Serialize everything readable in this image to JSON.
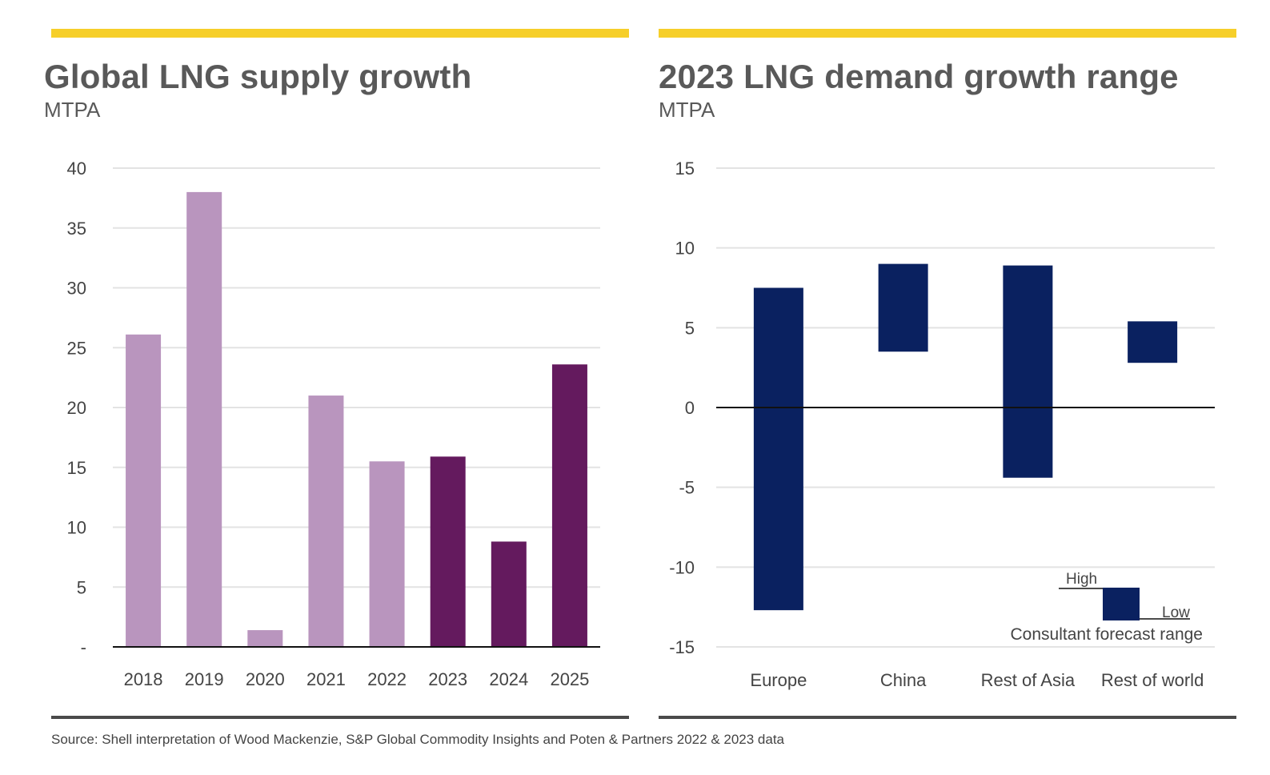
{
  "panels": {
    "left": {
      "title": "Global LNG supply growth",
      "unit": "MTPA"
    },
    "right": {
      "title": "2023 LNG demand growth range",
      "unit": "MTPA"
    }
  },
  "source": "Source: Shell interpretation of Wood Mackenzie, S&P Global Commodity Insights and Poten & Partners 2022 & 2023 data",
  "colors": {
    "accent_bar": "#f6cf2a",
    "historic_bar": "#b995be",
    "forecast_bar": "#641a5e",
    "range_bar": "#0a2160"
  },
  "chart_data": [
    {
      "type": "bar",
      "title": "Global LNG supply growth",
      "ylabel": "MTPA",
      "xlabel": "",
      "categories": [
        "2018",
        "2019",
        "2020",
        "2021",
        "2022",
        "2023",
        "2024",
        "2025"
      ],
      "values": [
        26.1,
        38.0,
        1.4,
        21.0,
        15.5,
        15.9,
        8.8,
        23.6
      ],
      "bar_kind": [
        "historic",
        "historic",
        "historic",
        "historic",
        "historic",
        "forecast",
        "forecast",
        "forecast"
      ],
      "ylim": [
        0,
        40
      ],
      "yticks": [
        0,
        5,
        10,
        15,
        20,
        25,
        30,
        35,
        40
      ],
      "ytick_labels": [
        "-",
        "5",
        "10",
        "15",
        "20",
        "25",
        "30",
        "35",
        "40"
      ],
      "grid": true,
      "legend": null
    },
    {
      "type": "bar",
      "subtype": "floating-range",
      "title": "2023 LNG demand growth range",
      "ylabel": "MTPA",
      "xlabel": "",
      "categories": [
        "Europe",
        "China",
        "Rest of Asia",
        "Rest of world"
      ],
      "series": [
        {
          "name": "High",
          "values": [
            7.5,
            9.0,
            8.9,
            5.4
          ]
        },
        {
          "name": "Low",
          "values": [
            -12.7,
            3.5,
            -4.4,
            2.8
          ]
        }
      ],
      "ylim": [
        -15,
        15
      ],
      "yticks": [
        -15,
        -10,
        -5,
        0,
        5,
        10,
        15
      ],
      "ytick_labels": [
        "-15",
        "-10",
        "-5",
        "0",
        "5",
        "10",
        "15"
      ],
      "grid": true,
      "legend": {
        "placement": "bottom-right",
        "high_label": "High",
        "low_label": "Low",
        "caption": "Consultant forecast range"
      }
    }
  ]
}
